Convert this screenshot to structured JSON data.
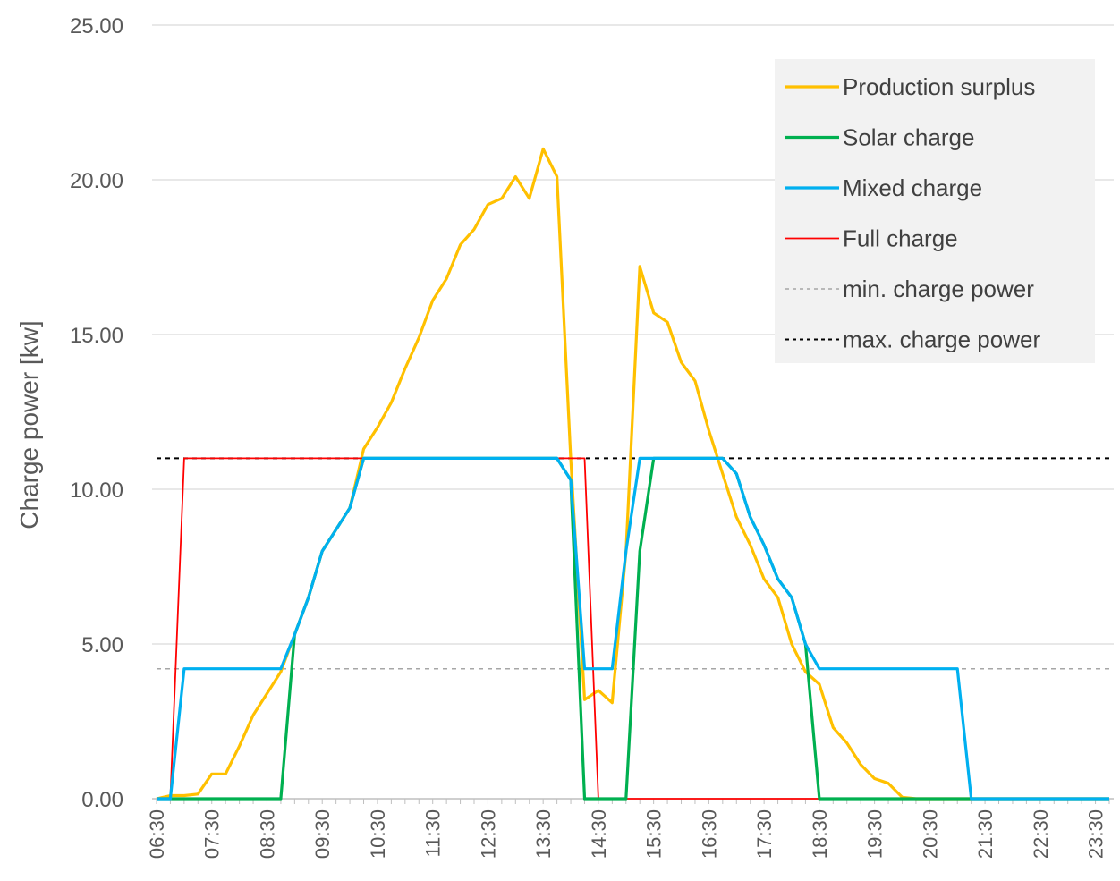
{
  "chart_data": {
    "type": "line",
    "title": "",
    "ylabel": "Charge power [kw]",
    "xlabel": "",
    "ylim": [
      0,
      25
    ],
    "yticks": [
      "0.00",
      "5.00",
      "10.00",
      "15.00",
      "20.00",
      "25.00"
    ],
    "grid": "horizontal",
    "legend_position": "top-right",
    "x_labels": [
      "06:30",
      "07:30",
      "08:30",
      "09:30",
      "10:30",
      "11:30",
      "12:30",
      "13:30",
      "14:30",
      "15:30",
      "16:30",
      "17:30",
      "18:30",
      "19:30",
      "20:30",
      "21:30",
      "22:30",
      "23:30"
    ],
    "series": [
      {
        "name": "Production surplus",
        "color": "#FFC000",
        "style": "solid",
        "points": [
          [
            "06:30",
            0
          ],
          [
            "06:45",
            0.1
          ],
          [
            "07:00",
            0.1
          ],
          [
            "07:15",
            0.15
          ],
          [
            "07:30",
            0.8
          ],
          [
            "07:45",
            0.8
          ],
          [
            "08:00",
            1.7
          ],
          [
            "08:15",
            2.7
          ],
          [
            "08:30",
            3.4
          ],
          [
            "08:45",
            4.1
          ],
          [
            "09:00",
            5.3
          ],
          [
            "09:15",
            6.5
          ],
          [
            "09:30",
            8.0
          ],
          [
            "09:45",
            8.7
          ],
          [
            "10:00",
            9.4
          ],
          [
            "10:15",
            11.3
          ],
          [
            "10:30",
            12.0
          ],
          [
            "10:45",
            12.8
          ],
          [
            "11:00",
            13.9
          ],
          [
            "11:15",
            14.9
          ],
          [
            "11:30",
            16.1
          ],
          [
            "11:45",
            16.8
          ],
          [
            "12:00",
            17.9
          ],
          [
            "12:15",
            18.4
          ],
          [
            "12:30",
            19.2
          ],
          [
            "12:45",
            19.4
          ],
          [
            "13:00",
            20.1
          ],
          [
            "13:15",
            19.4
          ],
          [
            "13:30",
            21.0
          ],
          [
            "13:45",
            20.1
          ],
          [
            "14:00",
            11.0
          ],
          [
            "14:15",
            3.2
          ],
          [
            "14:30",
            3.5
          ],
          [
            "14:45",
            3.1
          ],
          [
            "15:00",
            8.0
          ],
          [
            "15:15",
            17.2
          ],
          [
            "15:30",
            15.7
          ],
          [
            "15:45",
            15.4
          ],
          [
            "16:00",
            14.1
          ],
          [
            "16:15",
            13.5
          ],
          [
            "16:30",
            11.9
          ],
          [
            "16:45",
            10.5
          ],
          [
            "17:00",
            9.1
          ],
          [
            "17:15",
            8.2
          ],
          [
            "17:30",
            7.1
          ],
          [
            "17:45",
            6.5
          ],
          [
            "18:00",
            5.0
          ],
          [
            "18:15",
            4.1
          ],
          [
            "18:30",
            3.7
          ],
          [
            "18:45",
            2.3
          ],
          [
            "19:00",
            1.8
          ],
          [
            "19:15",
            1.1
          ],
          [
            "19:30",
            0.65
          ],
          [
            "19:45",
            0.5
          ],
          [
            "20:00",
            0.05
          ],
          [
            "20:15",
            0
          ],
          [
            "20:30",
            0
          ],
          [
            "23:45",
            0
          ]
        ]
      },
      {
        "name": "Solar charge",
        "color": "#00B050",
        "style": "solid",
        "points": [
          [
            "06:30",
            0
          ],
          [
            "08:45",
            0
          ],
          [
            "09:00",
            5.3
          ],
          [
            "09:15",
            6.5
          ],
          [
            "09:30",
            8.0
          ],
          [
            "09:45",
            8.7
          ],
          [
            "10:00",
            9.4
          ],
          [
            "10:15",
            11.0
          ],
          [
            "13:45",
            11.0
          ],
          [
            "14:00",
            10.3
          ],
          [
            "14:15",
            0
          ],
          [
            "15:00",
            0
          ],
          [
            "15:15",
            8.0
          ],
          [
            "15:30",
            11.0
          ],
          [
            "16:45",
            11.0
          ],
          [
            "17:00",
            10.5
          ],
          [
            "17:15",
            9.1
          ],
          [
            "17:30",
            8.2
          ],
          [
            "17:45",
            7.1
          ],
          [
            "18:00",
            6.5
          ],
          [
            "18:15",
            5.0
          ],
          [
            "18:30",
            0
          ],
          [
            "23:45",
            0
          ]
        ]
      },
      {
        "name": "Mixed charge",
        "color": "#00B0F0",
        "style": "solid",
        "points": [
          [
            "06:30",
            0
          ],
          [
            "06:45",
            0
          ],
          [
            "07:00",
            4.2
          ],
          [
            "08:45",
            4.2
          ],
          [
            "09:00",
            5.3
          ],
          [
            "09:15",
            6.5
          ],
          [
            "09:30",
            8.0
          ],
          [
            "09:45",
            8.7
          ],
          [
            "10:00",
            9.4
          ],
          [
            "10:15",
            11.0
          ],
          [
            "13:45",
            11.0
          ],
          [
            "14:00",
            10.3
          ],
          [
            "14:15",
            4.2
          ],
          [
            "14:45",
            4.2
          ],
          [
            "15:00",
            8.0
          ],
          [
            "15:15",
            11.0
          ],
          [
            "16:45",
            11.0
          ],
          [
            "17:00",
            10.5
          ],
          [
            "17:15",
            9.1
          ],
          [
            "17:30",
            8.2
          ],
          [
            "17:45",
            7.1
          ],
          [
            "18:00",
            6.5
          ],
          [
            "18:15",
            5.0
          ],
          [
            "18:30",
            4.2
          ],
          [
            "21:00",
            4.2
          ],
          [
            "21:15",
            0
          ],
          [
            "23:45",
            0
          ]
        ]
      },
      {
        "name": "Full charge",
        "color": "#FF0000",
        "style": "thin",
        "points": [
          [
            "06:30",
            0
          ],
          [
            "06:45",
            0
          ],
          [
            "07:00",
            11.0
          ],
          [
            "14:15",
            11.0
          ],
          [
            "14:30",
            0
          ],
          [
            "23:45",
            0
          ]
        ]
      },
      {
        "name": "min. charge power",
        "color": "#A6A6A6",
        "style": "dashed",
        "points": [
          [
            "06:30",
            4.2
          ],
          [
            "23:45",
            4.2
          ]
        ]
      },
      {
        "name": "max. charge power",
        "color": "#000000",
        "style": "dashed",
        "points": [
          [
            "06:30",
            11.0
          ],
          [
            "23:45",
            11.0
          ]
        ]
      }
    ]
  }
}
